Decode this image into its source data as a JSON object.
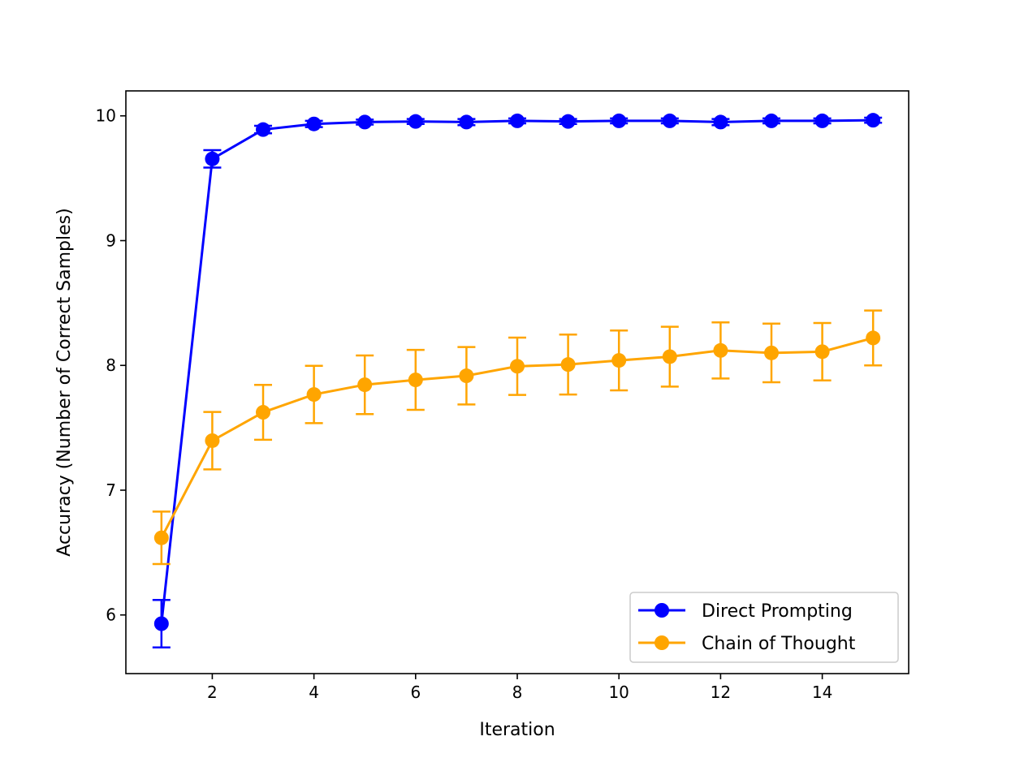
{
  "chart_data": {
    "type": "line",
    "title": "",
    "xlabel": "Iteration",
    "ylabel": "Accuracy (Number of Correct Samples)",
    "xlim": [
      0.3,
      15.7
    ],
    "ylim": [
      5.53,
      10.2
    ],
    "xticks": [
      2,
      4,
      6,
      8,
      10,
      12,
      14
    ],
    "yticks": [
      6,
      7,
      8,
      9,
      10
    ],
    "grid": false,
    "legend_position": "lower-right",
    "x": [
      1,
      2,
      3,
      4,
      5,
      6,
      7,
      8,
      9,
      10,
      11,
      12,
      13,
      14,
      15
    ],
    "series": [
      {
        "name": "Direct Prompting",
        "color": "#0000ff",
        "values": [
          5.93,
          9.655,
          9.89,
          9.935,
          9.95,
          9.955,
          9.95,
          9.96,
          9.955,
          9.96,
          9.96,
          9.95,
          9.96,
          9.96,
          9.965
        ],
        "error": [
          0.19,
          0.07,
          0.03,
          0.025,
          0.02,
          0.02,
          0.025,
          0.02,
          0.02,
          0.02,
          0.02,
          0.025,
          0.02,
          0.02,
          0.02
        ]
      },
      {
        "name": "Chain of Thought",
        "color": "#ffa500",
        "values": [
          6.618,
          7.397,
          7.624,
          7.767,
          7.845,
          7.884,
          7.917,
          7.993,
          8.007,
          8.04,
          8.07,
          8.12,
          8.1,
          8.11,
          8.22
        ],
        "error": [
          0.21,
          0.23,
          0.22,
          0.23,
          0.235,
          0.24,
          0.23,
          0.23,
          0.24,
          0.24,
          0.24,
          0.225,
          0.235,
          0.23,
          0.22
        ]
      }
    ]
  }
}
